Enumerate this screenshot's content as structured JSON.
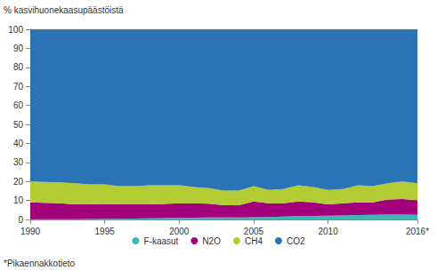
{
  "chart_data": {
    "type": "area",
    "ylabel": "% kasvihuonekaasupäästöistä",
    "annotations": [
      "*Pikaennakkotieto"
    ],
    "categories": [
      "1990",
      null,
      null,
      null,
      null,
      "1995",
      null,
      null,
      null,
      null,
      "2000",
      null,
      null,
      null,
      null,
      "2005",
      null,
      null,
      null,
      null,
      "2010",
      null,
      null,
      null,
      null,
      null,
      "2016*"
    ],
    "series": [
      {
        "name": "F-kaasut",
        "color": "#3cb8b4",
        "values": [
          0.1,
          0.1,
          0.1,
          0.1,
          0.2,
          0.3,
          0.4,
          0.5,
          0.6,
          0.7,
          0.8,
          0.9,
          1.0,
          1.0,
          1.1,
          1.2,
          1.3,
          1.5,
          1.7,
          1.9,
          2.0,
          2.1,
          2.3,
          2.4,
          2.6,
          2.6,
          2.5
        ]
      },
      {
        "name": "N2O",
        "color": "#a3007d",
        "values": [
          8.9,
          8.7,
          8.4,
          7.9,
          7.8,
          7.9,
          7.6,
          7.5,
          7.4,
          7.5,
          7.7,
          7.6,
          7.3,
          6.5,
          6.4,
          8.3,
          7.2,
          7.0,
          7.8,
          7.1,
          6.0,
          6.4,
          6.7,
          6.6,
          7.9,
          8.2,
          7.7
        ]
      },
      {
        "name": "CH4",
        "color": "#b3cc33",
        "values": [
          11,
          11,
          11,
          11,
          10.5,
          10.3,
          9.5,
          9.5,
          10,
          9.8,
          9.5,
          8.5,
          8.2,
          7.7,
          7.7,
          8,
          7,
          7.5,
          8.5,
          8,
          7.5,
          7.5,
          9,
          8.5,
          8.5,
          9.2,
          8.8
        ]
      },
      {
        "name": "CO2",
        "color": "#2a73b4",
        "values": [
          80,
          80.2,
          80.5,
          81,
          81.5,
          81.5,
          82.5,
          82.5,
          82,
          82,
          82,
          83,
          83.5,
          84.8,
          84.8,
          82.5,
          84.5,
          84,
          82,
          83,
          84.5,
          84,
          82,
          82.5,
          81,
          80,
          81
        ]
      }
    ],
    "ylim": [
      0,
      100
    ],
    "yticks": [
      0,
      10,
      20,
      30,
      40,
      50,
      60,
      70,
      80,
      90,
      100
    ],
    "stacked": true,
    "grid": false,
    "legend": "bottom"
  }
}
